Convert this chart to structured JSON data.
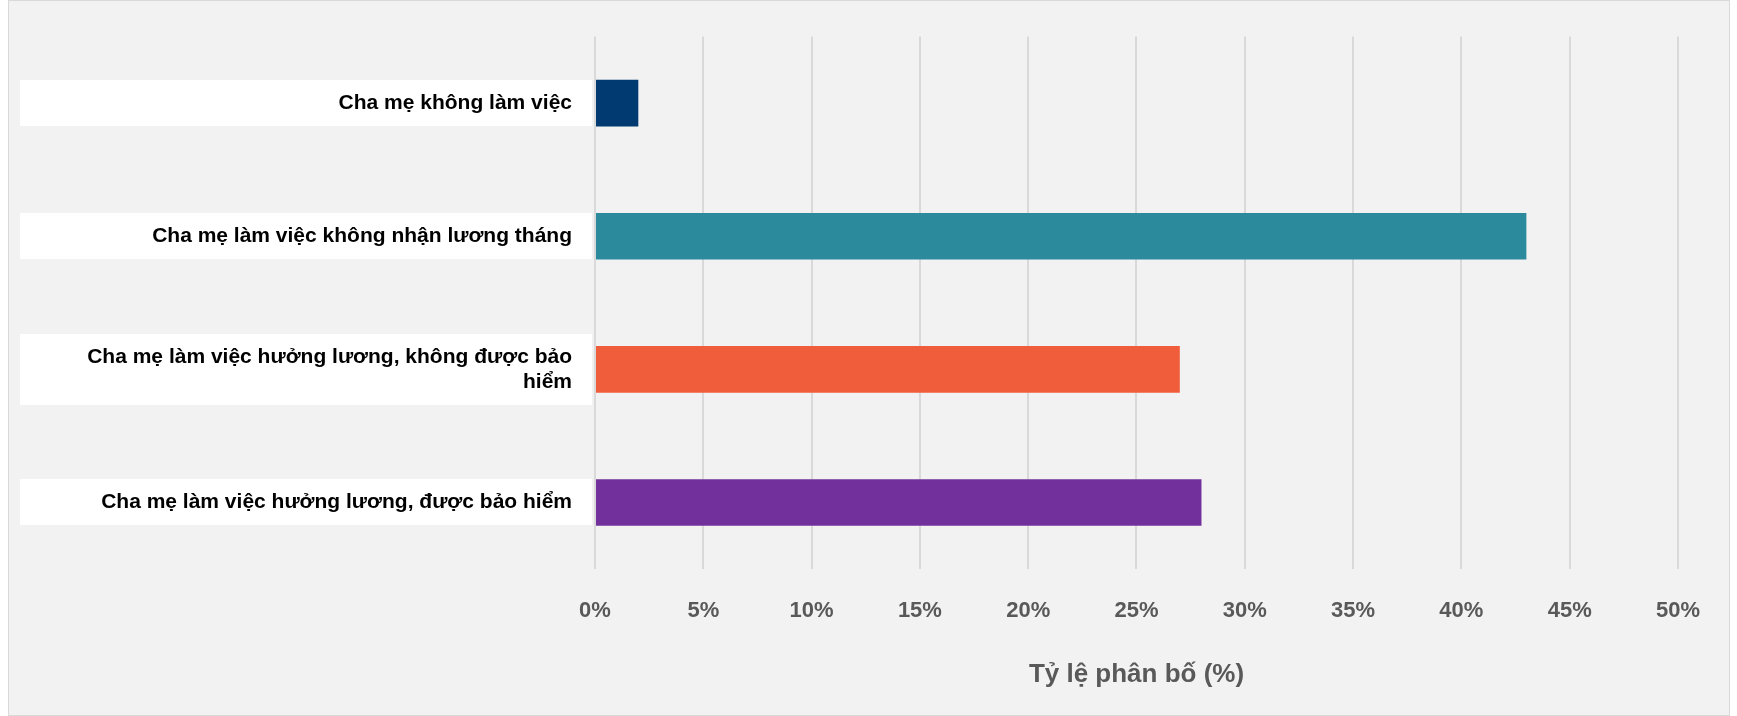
{
  "chart_data": {
    "type": "bar",
    "orientation": "horizontal",
    "xlabel": "Tỷ lệ phân bố (%)",
    "categories": [
      "Cha mẹ không làm việc",
      "Cha mẹ làm việc không nhận lương tháng",
      "Cha mẹ làm việc hưởng lương, không được bảo hiểm",
      "Cha mẹ làm việc hưởng lương, được bảo hiểm"
    ],
    "values": [
      2,
      43,
      27,
      28
    ],
    "colors": [
      "#003a70",
      "#2b8a9c",
      "#f05d3b",
      "#71309c"
    ],
    "xlim": [
      0,
      50
    ],
    "xticks": [
      {
        "value": 0,
        "label": "0%"
      },
      {
        "value": 5,
        "label": "5%"
      },
      {
        "value": 10,
        "label": "10%"
      },
      {
        "value": 15,
        "label": "15%"
      },
      {
        "value": 20,
        "label": "20%"
      },
      {
        "value": 25,
        "label": "25%"
      },
      {
        "value": 30,
        "label": "30%"
      },
      {
        "value": 35,
        "label": "35%"
      },
      {
        "value": 40,
        "label": "40%"
      },
      {
        "value": 45,
        "label": "45%"
      },
      {
        "value": 50,
        "label": "50%"
      }
    ],
    "grid": "x"
  }
}
